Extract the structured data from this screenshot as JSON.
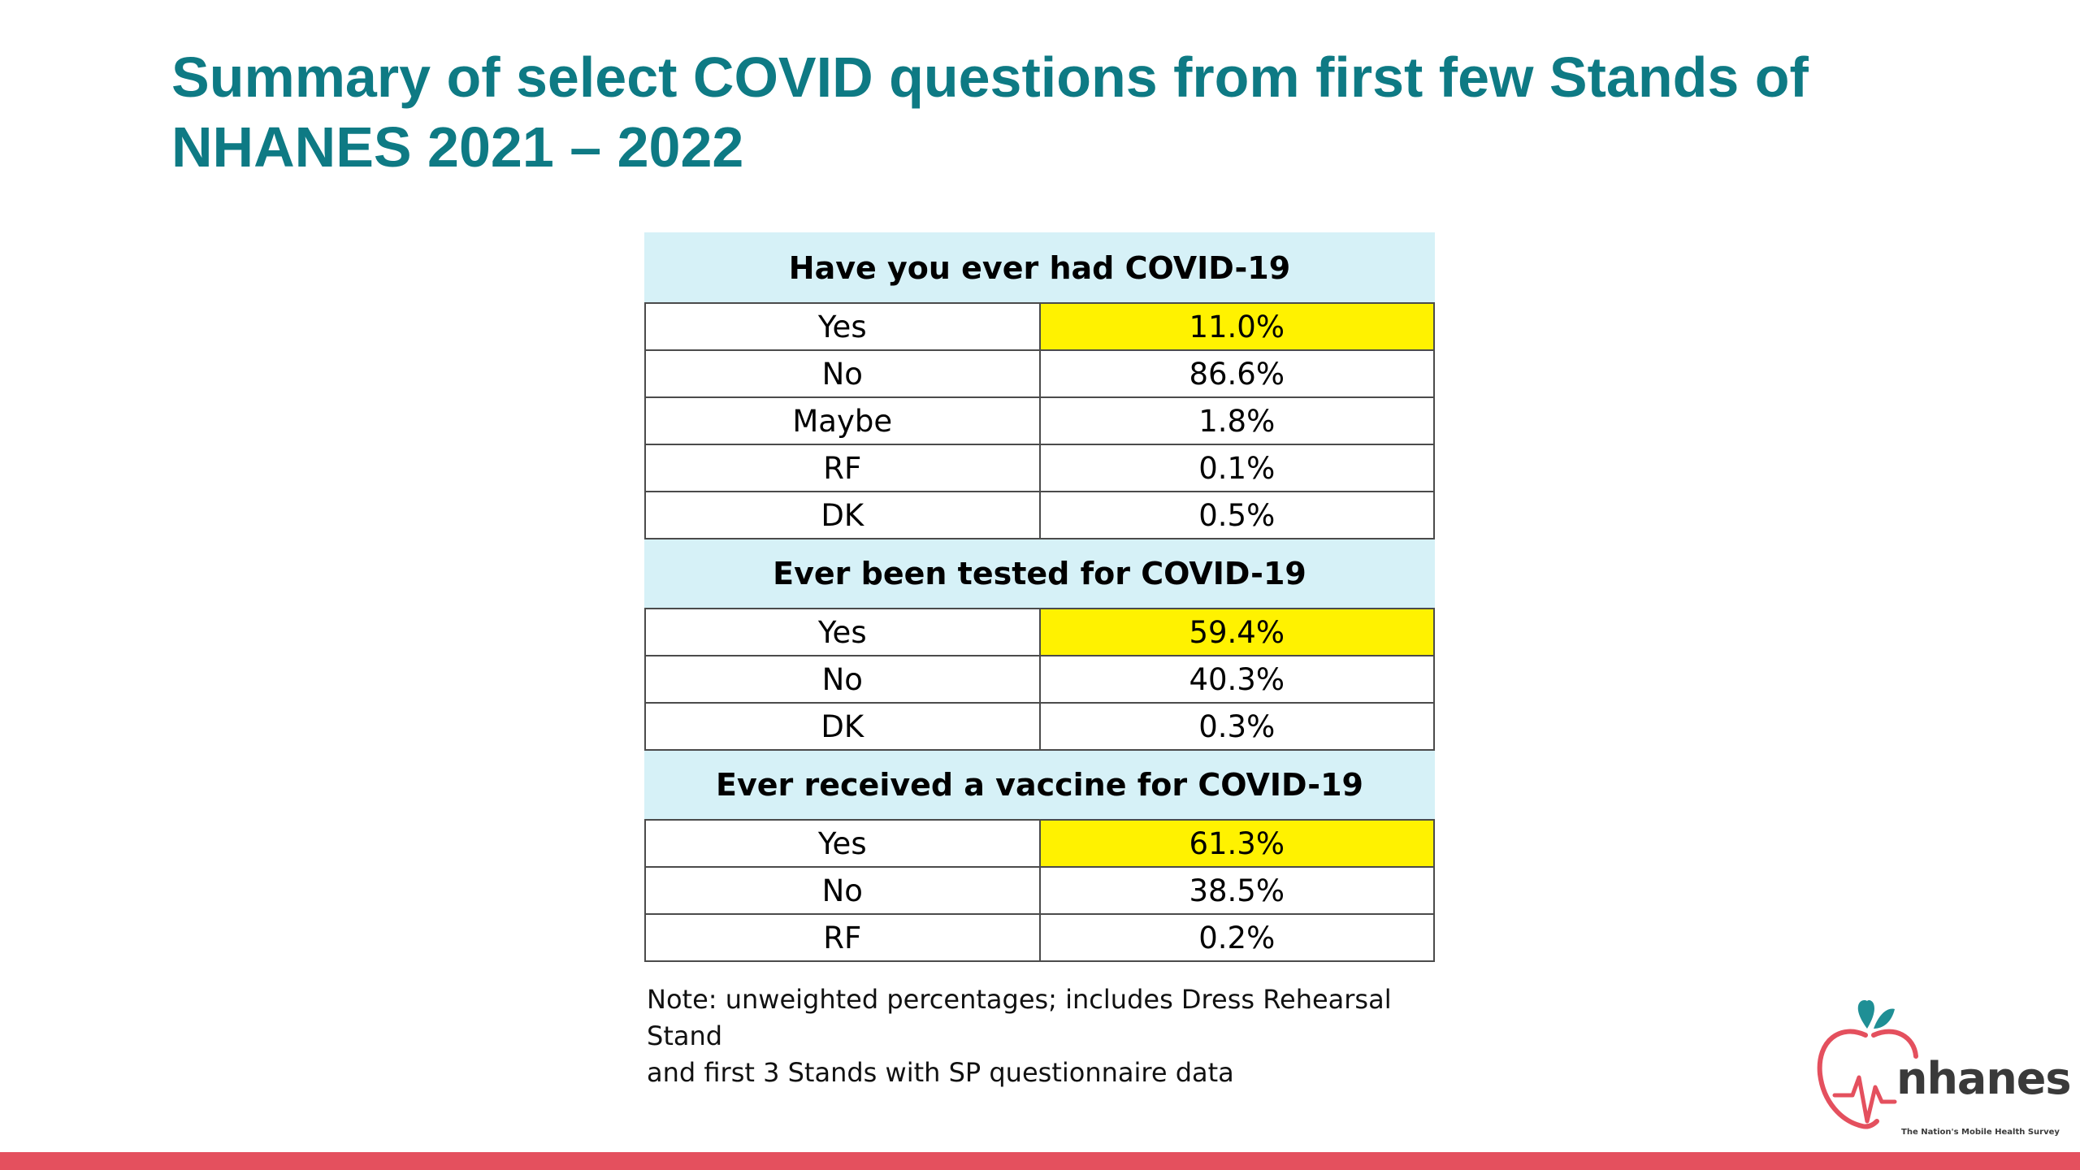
{
  "title": {
    "line1": "Summary of select COVID questions from first few Stands of",
    "line2": "NHANES 2021 – 2022"
  },
  "table": {
    "sections": [
      {
        "question": "Have you ever had COVID-19",
        "rows": [
          {
            "label": "Yes",
            "value": "11.0%"
          },
          {
            "label": "No",
            "value": "86.6%"
          },
          {
            "label": "Maybe",
            "value": "1.8%"
          },
          {
            "label": "RF",
            "value": "0.1%"
          },
          {
            "label": "DK",
            "value": "0.5%"
          }
        ]
      },
      {
        "question": "Ever been tested for COVID-19",
        "rows": [
          {
            "label": "Yes",
            "value": "59.4%"
          },
          {
            "label": "No",
            "value": "40.3%"
          },
          {
            "label": "DK",
            "value": "0.3%"
          }
        ]
      },
      {
        "question": "Ever received a vaccine for COVID-19",
        "rows": [
          {
            "label": "Yes",
            "value": "61.3%"
          },
          {
            "label": "No",
            "value": "38.5%"
          },
          {
            "label": "RF",
            "value": "0.2%"
          }
        ]
      }
    ]
  },
  "note": {
    "line1": "Note: unweighted percentages; includes Dress Rehearsal Stand",
    "line2": "and first 3 Stands with SP questionnaire data"
  },
  "logo": {
    "name": "nhanes",
    "tagline": "The Nation's Mobile Health Survey"
  },
  "colors": {
    "title": "#0e7a84",
    "header_fill": "#d6f1f7",
    "highlight": "#fff200",
    "bottom_bar": "#e4505e",
    "logo_apple": "#e4505e",
    "logo_leaf": "#1f8f95"
  }
}
